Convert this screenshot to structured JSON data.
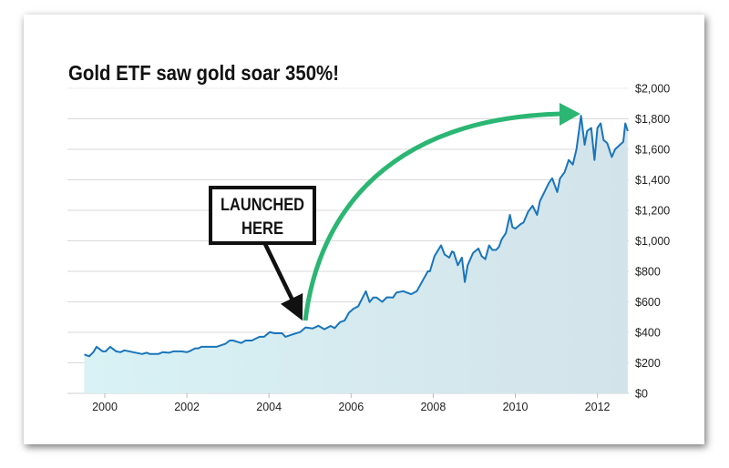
{
  "chart_data": {
    "type": "area",
    "title": "Gold ETF saw gold soar 350%!",
    "xlabel": "",
    "ylabel": "",
    "xlim": [
      1999.5,
      2012.75
    ],
    "ylim": [
      0,
      2000
    ],
    "x_ticks": [
      2000,
      2002,
      2004,
      2006,
      2008,
      2010,
      2012
    ],
    "x_tick_labels": [
      "2000",
      "2002",
      "2004",
      "2006",
      "2008",
      "2010",
      "2012"
    ],
    "y_ticks": [
      0,
      200,
      400,
      600,
      800,
      1000,
      1200,
      1400,
      1600,
      1800,
      2000
    ],
    "y_tick_labels": [
      "$0",
      "$200",
      "$400",
      "$600",
      "$800",
      "$1,000",
      "$1,200",
      "$1,400",
      "$1,600",
      "$1,800",
      "$2,000"
    ],
    "y_axis_side": "right",
    "grid": true,
    "line_color": "#1a75bb",
    "fill_colors": [
      "#d8f2f5",
      "#d3e3ea"
    ],
    "series": [
      {
        "x": [
          1999.5,
          1999.62,
          1999.72,
          1999.8,
          1999.95,
          2000.02,
          2000.13,
          2000.28,
          2000.38,
          2000.48,
          2000.69,
          2000.91,
          2001.02,
          2001.1,
          2001.3,
          2001.41,
          2001.56,
          2001.67,
          2001.86,
          2002.0,
          2002.08,
          2002.2,
          2002.28,
          2002.35,
          2002.72,
          2002.94,
          2003.04,
          2003.13,
          2003.32,
          2003.43,
          2003.58,
          2003.77,
          2003.88,
          2004.02,
          2004.13,
          2004.32,
          2004.4,
          2004.58,
          2004.76,
          2004.89,
          2005.06,
          2005.2,
          2005.35,
          2005.5,
          2005.6,
          2005.73,
          2005.84,
          2005.95,
          2006.06,
          2006.17,
          2006.36,
          2006.45,
          2006.54,
          2006.62,
          2006.76,
          2006.87,
          2007.02,
          2007.1,
          2007.27,
          2007.46,
          2007.6,
          2007.87,
          2007.92,
          2008.03,
          2008.19,
          2008.28,
          2008.39,
          2008.46,
          2008.5,
          2008.6,
          2008.7,
          2008.77,
          2008.84,
          2008.97,
          2009.1,
          2009.18,
          2009.27,
          2009.36,
          2009.44,
          2009.53,
          2009.6,
          2009.67,
          2009.77,
          2009.87,
          2009.93,
          2010.0,
          2010.13,
          2010.2,
          2010.31,
          2010.42,
          2010.53,
          2010.6,
          2010.82,
          2010.9,
          2011.02,
          2011.09,
          2011.2,
          2011.3,
          2011.4,
          2011.49,
          2011.6,
          2011.69,
          2011.75,
          2011.85,
          2011.93,
          2012.0,
          2012.08,
          2012.15,
          2012.24,
          2012.35,
          2012.43,
          2012.63,
          2012.68,
          2012.74
        ],
        "values": [
          255,
          243,
          270,
          305,
          275,
          275,
          305,
          275,
          270,
          282,
          270,
          258,
          266,
          258,
          258,
          270,
          266,
          275,
          275,
          270,
          278,
          295,
          295,
          305,
          305,
          325,
          346,
          346,
          330,
          346,
          346,
          371,
          371,
          402,
          394,
          394,
          371,
          387,
          402,
          432,
          425,
          443,
          420,
          442,
          428,
          467,
          477,
          529,
          555,
          570,
          669,
          599,
          628,
          628,
          600,
          630,
          628,
          660,
          670,
          650,
          670,
          800,
          800,
          900,
          970,
          910,
          890,
          930,
          925,
          840,
          890,
          730,
          840,
          920,
          950,
          900,
          880,
          970,
          940,
          940,
          960,
          1010,
          1050,
          1170,
          1090,
          1080,
          1110,
          1120,
          1190,
          1230,
          1170,
          1260,
          1380,
          1410,
          1320,
          1410,
          1450,
          1530,
          1500,
          1600,
          1820,
          1630,
          1720,
          1740,
          1530,
          1740,
          1770,
          1660,
          1640,
          1550,
          1600,
          1650,
          1770,
          1720
        ]
      }
    ],
    "annotations": [
      {
        "type": "callout-box",
        "lines": [
          "LAUNCHED",
          "HERE"
        ],
        "points_to_x": 2004.85
      },
      {
        "type": "curved-arrow",
        "color": "#2bb673",
        "from_x": 2004.9,
        "to_x": 2011.55
      }
    ]
  }
}
